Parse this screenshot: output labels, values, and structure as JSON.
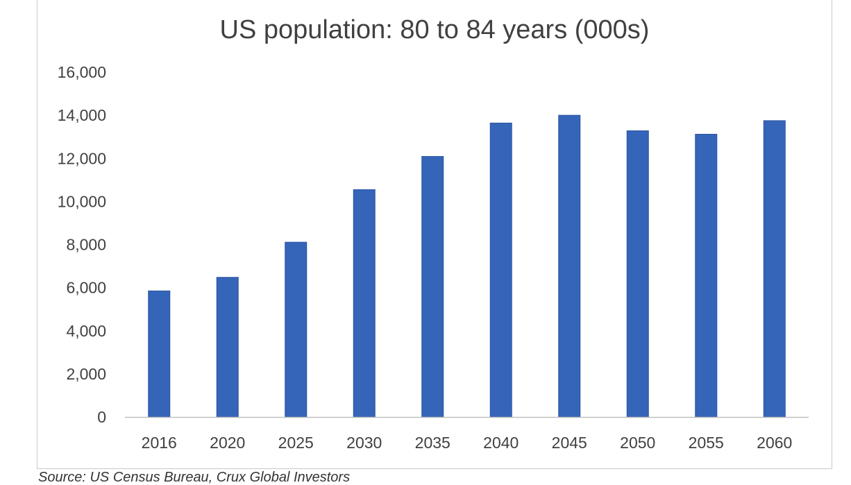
{
  "chart_data": {
    "type": "bar",
    "title": "US population: 80 to 84 years (000s)",
    "xlabel": "",
    "ylabel": "",
    "categories": [
      "2016",
      "2020",
      "2025",
      "2030",
      "2035",
      "2040",
      "2045",
      "2050",
      "2055",
      "2060"
    ],
    "series": [
      {
        "values": [
          5850,
          6480,
          8110,
          10550,
          12090,
          13640,
          14000,
          13280,
          13120,
          13750
        ]
      }
    ],
    "ylim": [
      0,
      16000
    ],
    "yticks": [
      0,
      2000,
      4000,
      6000,
      8000,
      10000,
      12000,
      14000,
      16000
    ],
    "ytick_labels": [
      "0",
      "2,000",
      "4,000",
      "6,000",
      "8,000",
      "10,000",
      "12,000",
      "14,000",
      "16,000"
    ],
    "grid": false,
    "legend": "none",
    "bar_color": "#3565b8",
    "axis_color": "#bfbfbf"
  },
  "source_note": "Source: US Census Bureau, Crux Global Investors"
}
